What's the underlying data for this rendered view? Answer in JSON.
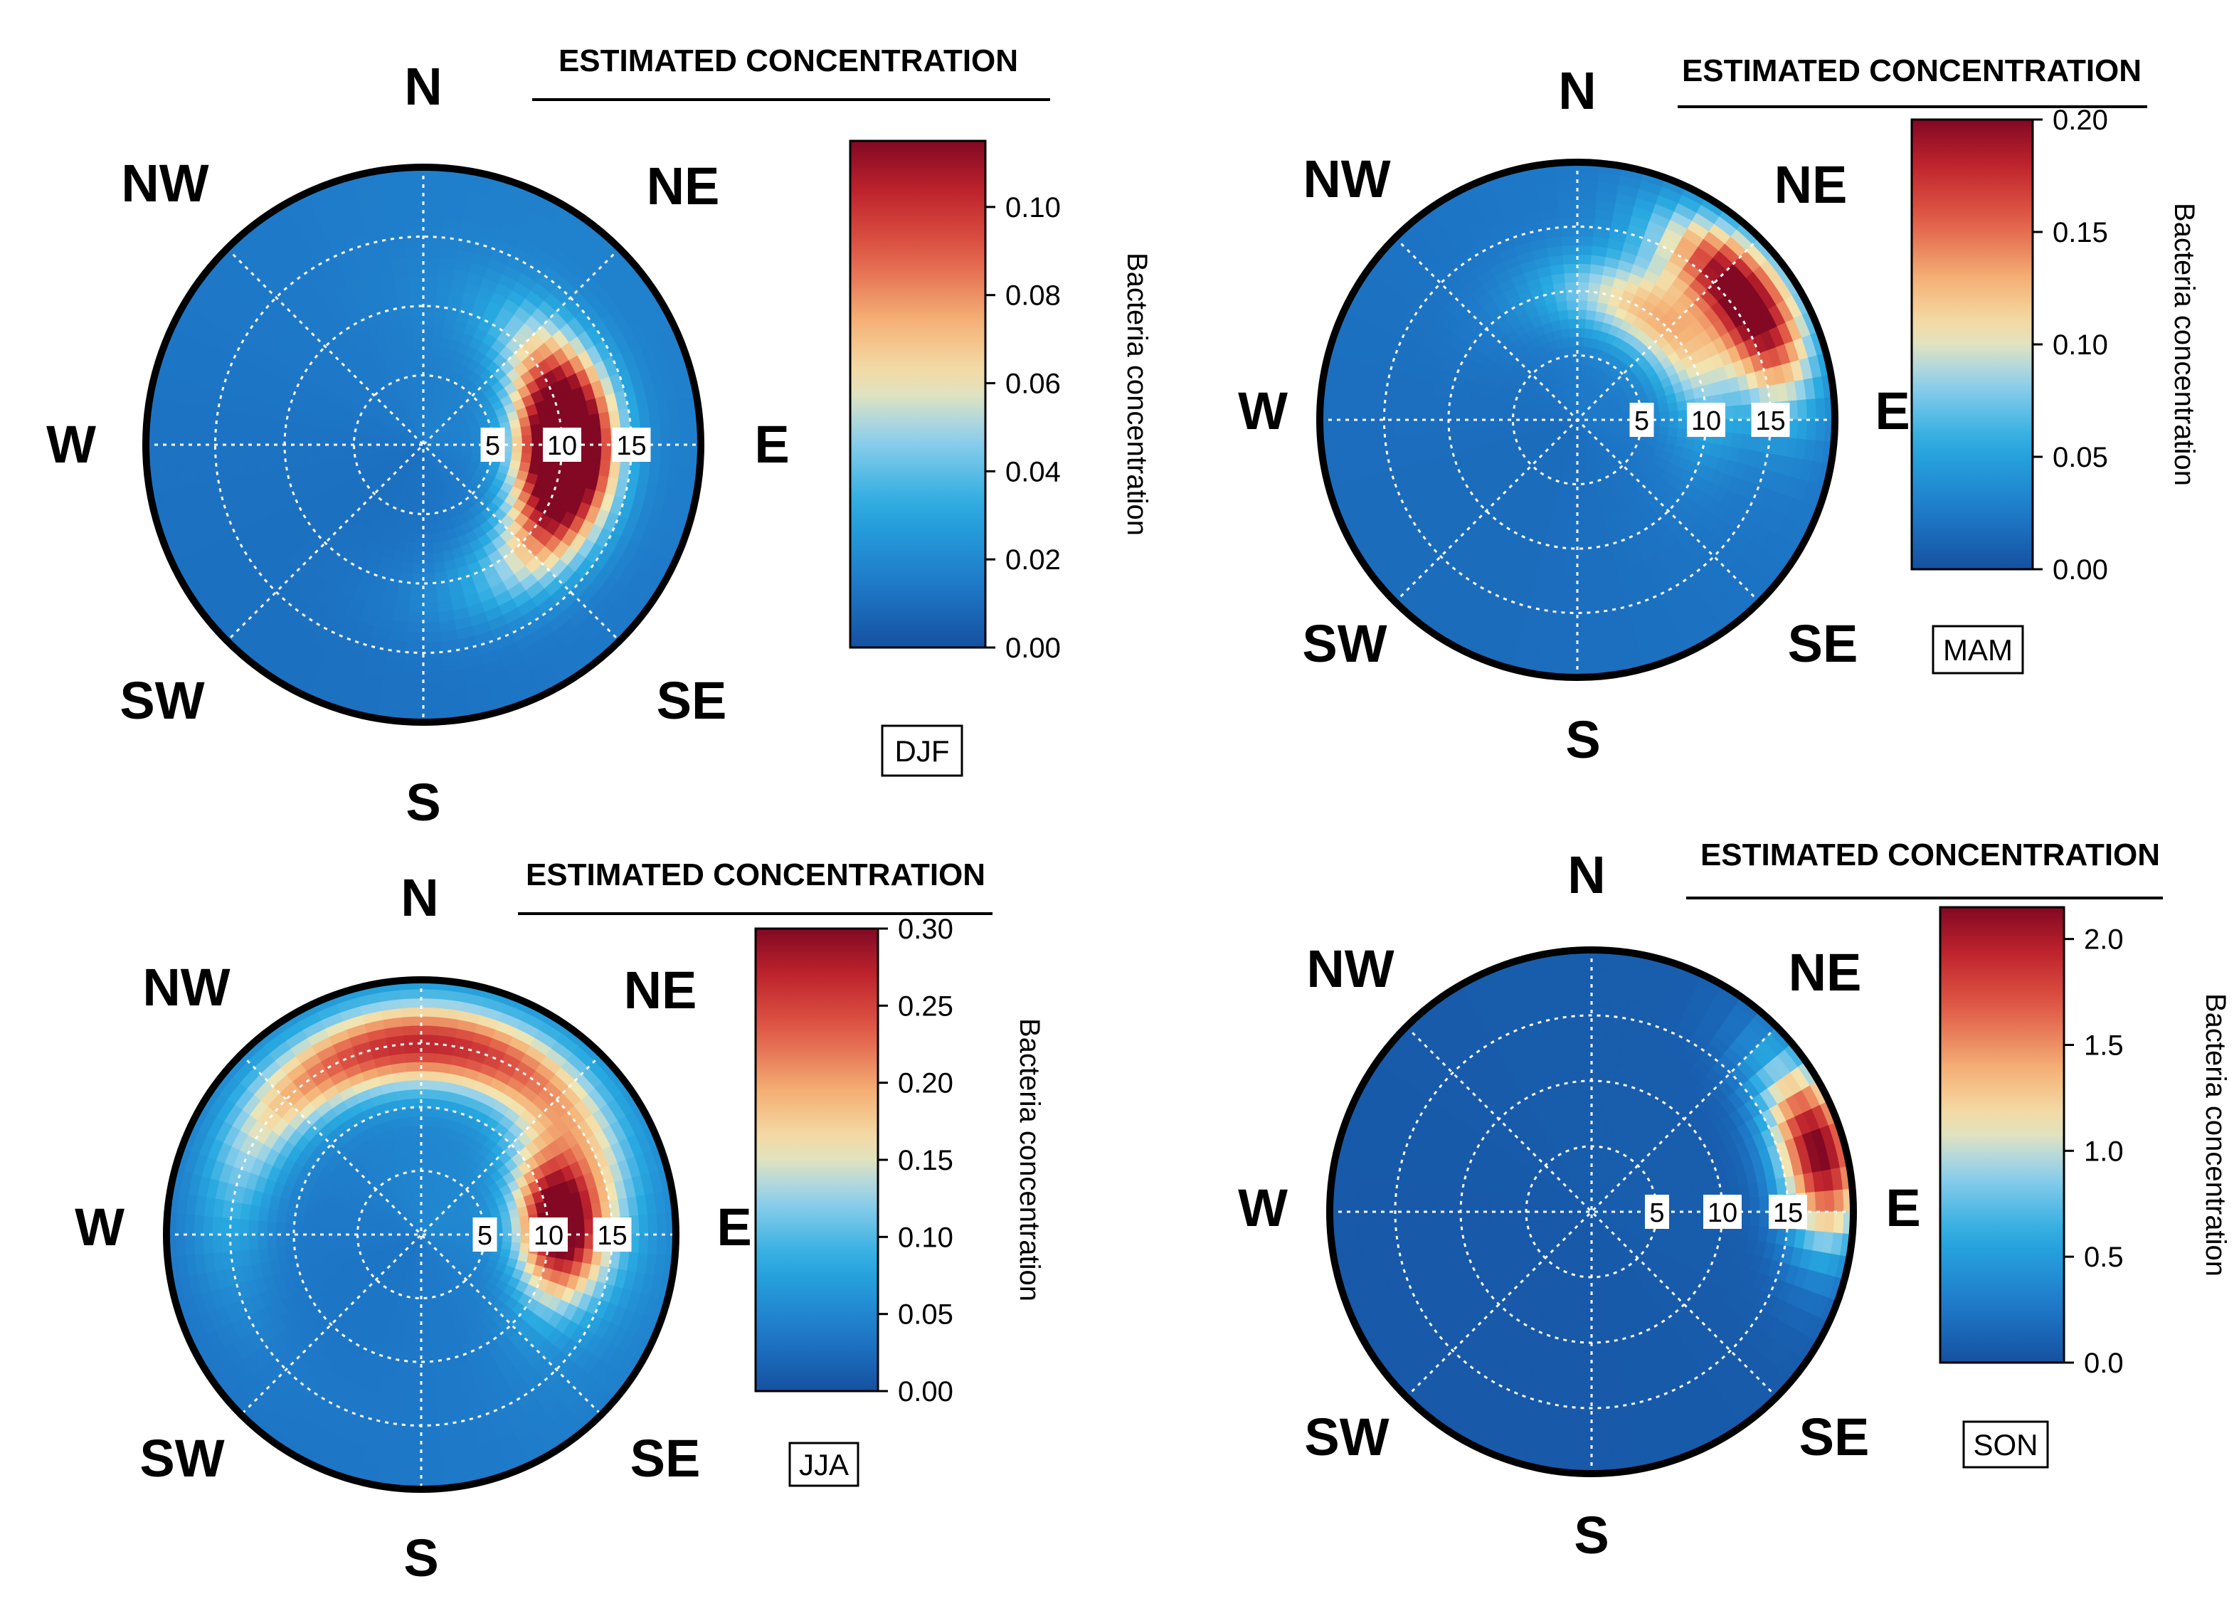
{
  "figure": {
    "type": "polar_concentration_plots",
    "title_text": "ESTIMATED CONCENTRATION",
    "colorbar_label": "Bacteria concentration",
    "directions": {
      "N": "N",
      "NE": "NE",
      "E": "E",
      "SE": "SE",
      "S": "S",
      "SW": "SW",
      "W": "W",
      "NW": "NW"
    },
    "ring_labels": [
      "5",
      "10",
      "15"
    ],
    "colors": {
      "low": "#1f5fb3",
      "mid": "#f2e7b3",
      "high": "#8c0a26",
      "ring": "#000000"
    }
  },
  "chart_data": [
    {
      "type": "heatmap",
      "subtype": "polar",
      "season": "DJF",
      "title": "ESTIMATED CONCENTRATION",
      "colorbar_label": "Bacteria concentration",
      "radial_ticks": [
        5,
        10,
        15
      ],
      "radial_max": 20,
      "color_range": [
        0,
        0.115
      ],
      "colorbar_ticks": [
        "0.00",
        "0.02",
        "0.04",
        "0.06",
        "0.08",
        "0.10"
      ],
      "hotspots": [
        {
          "direction_deg": 90,
          "radius": 10,
          "peak_value": 0.11,
          "spread_deg": 70
        },
        {
          "direction_deg": 100,
          "radius": 11,
          "peak_value": 0.06,
          "spread_deg": 110
        }
      ],
      "background_value": 0.02
    },
    {
      "type": "heatmap",
      "subtype": "polar",
      "season": "MAM",
      "title": "ESTIMATED CONCENTRATION",
      "colorbar_label": "Bacteria concentration",
      "radial_ticks": [
        5,
        10,
        15
      ],
      "radial_max": 20,
      "color_range": [
        0,
        0.2
      ],
      "colorbar_ticks": [
        "0.00",
        "0.05",
        "0.10",
        "0.15",
        "0.20"
      ],
      "hotspots": [
        {
          "direction_deg": 55,
          "radius": 16,
          "peak_value": 0.2,
          "spread_deg": 55
        },
        {
          "direction_deg": 40,
          "radius": 10,
          "peak_value": 0.1,
          "spread_deg": 100
        }
      ],
      "background_value": 0.03
    },
    {
      "type": "heatmap",
      "subtype": "polar",
      "season": "JJA",
      "title": "ESTIMATED CONCENTRATION",
      "colorbar_label": "Bacteria concentration",
      "radial_ticks": [
        5,
        10,
        15
      ],
      "radial_max": 20,
      "color_range": [
        0,
        0.3
      ],
      "colorbar_ticks": [
        "0.00",
        "0.05",
        "0.10",
        "0.15",
        "0.20",
        "0.25",
        "0.30"
      ],
      "hotspots": [
        {
          "direction_deg": 85,
          "radius": 11,
          "peak_value": 0.3,
          "spread_deg": 60
        },
        {
          "direction_deg": 0,
          "radius": 15,
          "peak_value": 0.22,
          "spread_deg": 140
        }
      ],
      "background_value": 0.06
    },
    {
      "type": "heatmap",
      "subtype": "polar",
      "season": "SON",
      "title": "ESTIMATED CONCENTRATION",
      "colorbar_label": "Bacteria concentration",
      "radial_ticks": [
        5,
        10,
        15
      ],
      "radial_max": 20,
      "color_range": [
        0,
        2.15
      ],
      "colorbar_ticks": [
        "0.0",
        "0.5",
        "1.0",
        "1.5",
        "2.0"
      ],
      "hotspots": [
        {
          "direction_deg": 75,
          "radius": 18,
          "peak_value": 2.1,
          "spread_deg": 45
        }
      ],
      "background_value": 0.1
    }
  ]
}
